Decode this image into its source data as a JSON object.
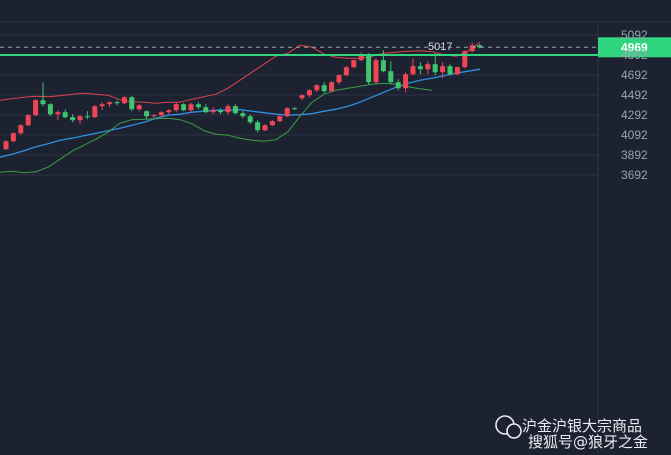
{
  "chart_data": {
    "type": "candlestick",
    "y_axis": {
      "ticks": [
        5092,
        4892,
        4692,
        4492,
        4292,
        4092,
        3892,
        3692
      ],
      "range": [
        3600,
        5120
      ],
      "position": "right",
      "grid": true
    },
    "horizontal_line": {
      "value": 5017,
      "label": "5017",
      "color": "#2fd67f"
    },
    "current_price": {
      "value": 4969,
      "label": "4969",
      "color": "#2fd67f"
    },
    "colors": {
      "up": "#ef4656",
      "down": "#3fc56e",
      "upper_band": "#e0434f",
      "middle_band": "#2f8fe0",
      "lower_band": "#3e9e48",
      "background": "#1c2230",
      "grid": "#2b3342",
      "axis_text": "#9aa3b2"
    },
    "candles": [
      [
        3950,
        4040,
        3940,
        4030
      ],
      [
        4030,
        4120,
        4020,
        4110
      ],
      [
        4110,
        4200,
        4095,
        4190
      ],
      [
        4190,
        4300,
        4180,
        4290
      ],
      [
        4290,
        4450,
        4280,
        4440
      ],
      [
        4440,
        4620,
        4380,
        4400
      ],
      [
        4400,
        4410,
        4280,
        4300
      ],
      [
        4300,
        4340,
        4240,
        4320
      ],
      [
        4320,
        4350,
        4260,
        4270
      ],
      [
        4270,
        4300,
        4220,
        4240
      ],
      [
        4240,
        4290,
        4200,
        4280
      ],
      [
        4280,
        4330,
        4250,
        4270
      ],
      [
        4270,
        4390,
        4260,
        4380
      ],
      [
        4380,
        4420,
        4340,
        4400
      ],
      [
        4400,
        4430,
        4370,
        4420
      ],
      [
        4420,
        4440,
        4390,
        4410
      ],
      [
        4410,
        4480,
        4400,
        4470
      ],
      [
        4470,
        4480,
        4330,
        4350
      ],
      [
        4350,
        4400,
        4330,
        4390
      ],
      [
        4330,
        4340,
        4250,
        4280
      ],
      [
        4280,
        4300,
        4260,
        4290
      ],
      [
        4290,
        4330,
        4270,
        4320
      ],
      [
        4320,
        4350,
        4300,
        4340
      ],
      [
        4340,
        4420,
        4320,
        4400
      ],
      [
        4400,
        4410,
        4330,
        4340
      ],
      [
        4340,
        4420,
        4320,
        4400
      ],
      [
        4400,
        4420,
        4350,
        4370
      ],
      [
        4370,
        4400,
        4310,
        4320
      ],
      [
        4320,
        4370,
        4300,
        4340
      ],
      [
        4340,
        4360,
        4300,
        4320
      ],
      [
        4320,
        4400,
        4300,
        4380
      ],
      [
        4380,
        4400,
        4300,
        4310
      ],
      [
        4310,
        4330,
        4260,
        4280
      ],
      [
        4280,
        4300,
        4200,
        4220
      ],
      [
        4220,
        4240,
        4120,
        4140
      ],
      [
        4140,
        4200,
        4130,
        4190
      ],
      [
        4190,
        4240,
        4180,
        4230
      ],
      [
        4230,
        4290,
        4220,
        4280
      ],
      [
        4280,
        4370,
        4270,
        4360
      ],
      [
        4360,
        4370,
        4340,
        4350
      ],
      [
        4460,
        4500,
        4440,
        4490
      ],
      [
        4490,
        4550,
        4470,
        4540
      ],
      [
        4540,
        4600,
        4520,
        4590
      ],
      [
        4590,
        4620,
        4510,
        4530
      ],
      [
        4530,
        4630,
        4520,
        4620
      ],
      [
        4620,
        4700,
        4600,
        4690
      ],
      [
        4690,
        4780,
        4680,
        4770
      ],
      [
        4770,
        4850,
        4760,
        4840
      ],
      [
        4840,
        4920,
        4830,
        4900
      ],
      [
        4900,
        4910,
        4600,
        4620
      ],
      [
        4620,
        4860,
        4610,
        4840
      ],
      [
        4840,
        4940,
        4720,
        4730
      ],
      [
        4730,
        4830,
        4600,
        4620
      ],
      [
        4620,
        4650,
        4540,
        4560
      ],
      [
        4560,
        4720,
        4520,
        4700
      ],
      [
        4700,
        4860,
        4690,
        4780
      ],
      [
        4780,
        4820,
        4700,
        4750
      ],
      [
        4750,
        4830,
        4700,
        4800
      ],
      [
        4800,
        4910,
        4690,
        4720
      ],
      [
        4720,
        4820,
        4660,
        4780
      ],
      [
        4780,
        4800,
        4690,
        4700
      ],
      [
        4700,
        4780,
        4690,
        4770
      ],
      [
        4770,
        4940,
        4760,
        4930
      ],
      [
        4930,
        5017,
        4920,
        4990
      ],
      [
        4990,
        5000,
        4960,
        4969
      ]
    ],
    "middle_band": [
      3870,
      3900,
      3935,
      3975,
      4005,
      4040,
      4060,
      4085,
      4110,
      4135,
      4160,
      4190,
      4220,
      4260,
      4290,
      4300,
      4320,
      4330,
      4340,
      4340,
      4345,
      4330,
      4315,
      4300,
      4290,
      4295,
      4305,
      4330,
      4350,
      4380,
      4420,
      4470,
      4520,
      4570,
      4610,
      4640,
      4660,
      4685,
      4710,
      4730,
      4750
    ],
    "upper_band": [
      4440,
      4455,
      4470,
      4480,
      4475,
      4485,
      4500,
      4510,
      4500,
      4490,
      4445,
      4425,
      4420,
      4410,
      4420,
      4420,
      4450,
      4475,
      4500,
      4560,
      4640,
      4720,
      4800,
      4880,
      4910,
      4990,
      4970,
      4900,
      4870,
      4860,
      4860,
      4880,
      4910,
      4920,
      4930,
      4935,
      4925,
      4895,
      4880,
      4930,
      5020
    ],
    "lower_band": [
      3720,
      3730,
      3715,
      3725,
      3770,
      3850,
      3930,
      3990,
      4050,
      4120,
      4210,
      4245,
      4250,
      4255,
      4260,
      4245,
      4205,
      4135,
      4100,
      4090,
      4060,
      4040,
      4030,
      4045,
      4125,
      4280,
      4420,
      4500,
      4540,
      4560,
      4580,
      4600,
      4610,
      4600,
      4575,
      4555,
      4540
    ]
  },
  "watermark": {
    "account_label": "沪金沪银大宗商品",
    "source_label": "搜狐号@狼牙之金"
  }
}
